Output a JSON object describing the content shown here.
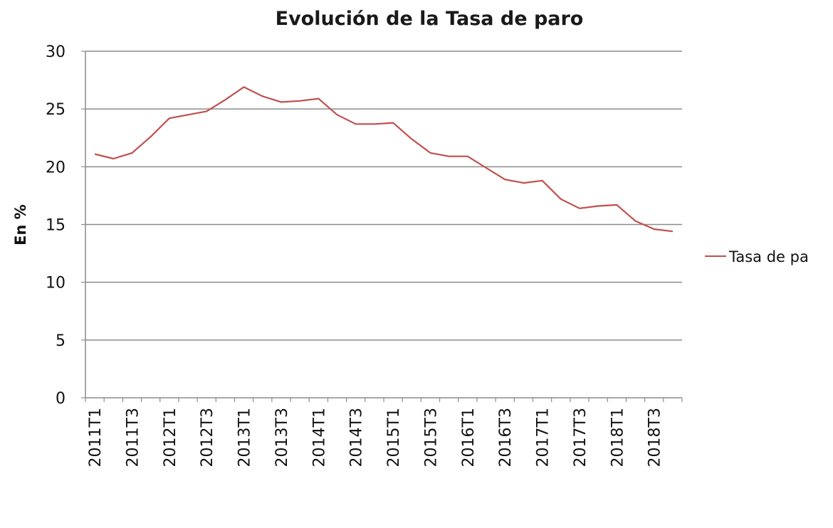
{
  "chart_data": {
    "type": "line",
    "title": "Evolución de la Tasa de paro",
    "ylabel": "En %",
    "xlabel": "",
    "ylim": [
      0,
      30
    ],
    "yticks": [
      "0",
      "5",
      "10",
      "15",
      "20",
      "25",
      "30"
    ],
    "x": [
      "2011T1",
      "2011T2",
      "2011T3",
      "2011T4",
      "2012T1",
      "2012T2",
      "2012T3",
      "2012T4",
      "2013T1",
      "2013T2",
      "2013T3",
      "2013T4",
      "2014T1",
      "2014T2",
      "2014T3",
      "2014T4",
      "2015T1",
      "2015T2",
      "2015T3",
      "2015T4",
      "2016T1",
      "2016T2",
      "2016T3",
      "2016T4",
      "2017T1",
      "2017T2",
      "2017T3",
      "2017T4",
      "2018T1",
      "2018T2",
      "2018T3",
      "2018T4"
    ],
    "tick_labels": [
      "2011T1",
      "2011T3",
      "2012T1",
      "2012T3",
      "2013T1",
      "2013T3",
      "2014T1",
      "2014T3",
      "2015T1",
      "2015T3",
      "2016T1",
      "2016T3",
      "2017T1",
      "2017T3",
      "2018T1",
      "2018T3"
    ],
    "series": [
      {
        "name": "Tasa de paro",
        "color": "#c0504d",
        "values": [
          21.1,
          20.7,
          21.2,
          22.6,
          24.2,
          24.5,
          24.8,
          25.8,
          26.9,
          26.1,
          25.6,
          25.7,
          25.9,
          24.5,
          23.7,
          23.7,
          23.8,
          22.4,
          21.2,
          20.9,
          20.9,
          19.9,
          18.9,
          18.6,
          18.8,
          17.2,
          16.4,
          16.6,
          16.7,
          15.3,
          14.6,
          14.4
        ]
      }
    ],
    "legend_text": "Tasa de pa",
    "legend_position": "right",
    "grid": true
  }
}
